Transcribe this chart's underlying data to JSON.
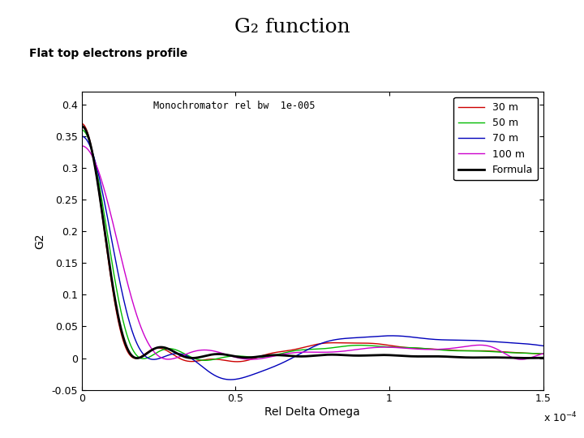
{
  "title": "G₂ function",
  "subtitle": "Flat top electrons profile",
  "plot_annotation": "Monochromator rel bw  1e-005",
  "xlabel": "Rel Delta Omega",
  "ylabel": "G2",
  "xlim": [
    0,
    0.00015
  ],
  "ylim": [
    -0.05,
    0.42
  ],
  "yticks": [
    -0.05,
    0,
    0.05,
    0.1,
    0.15,
    0.2,
    0.25,
    0.3,
    0.35,
    0.4
  ],
  "xtick_values": [
    0,
    5e-05,
    0.0001,
    0.00015
  ],
  "xtick_labels": [
    "0",
    "0.5",
    "1",
    "1.5"
  ],
  "lines": [
    {
      "label": "30 m",
      "color": "#cc0000",
      "L": 30,
      "lw": 1.0
    },
    {
      "label": "50 m",
      "color": "#00bb00",
      "L": 50,
      "lw": 1.0
    },
    {
      "label": "70 m",
      "color": "#0000bb",
      "L": 70,
      "lw": 1.0
    },
    {
      "label": "100 m",
      "color": "#cc00cc",
      "L": 100,
      "lw": 1.0
    },
    {
      "label": "Formula",
      "color": "#000000",
      "L": 0,
      "lw": 2.0
    }
  ],
  "bg_color": "#ffffff",
  "N_points": 3000,
  "xmax": 0.00015
}
